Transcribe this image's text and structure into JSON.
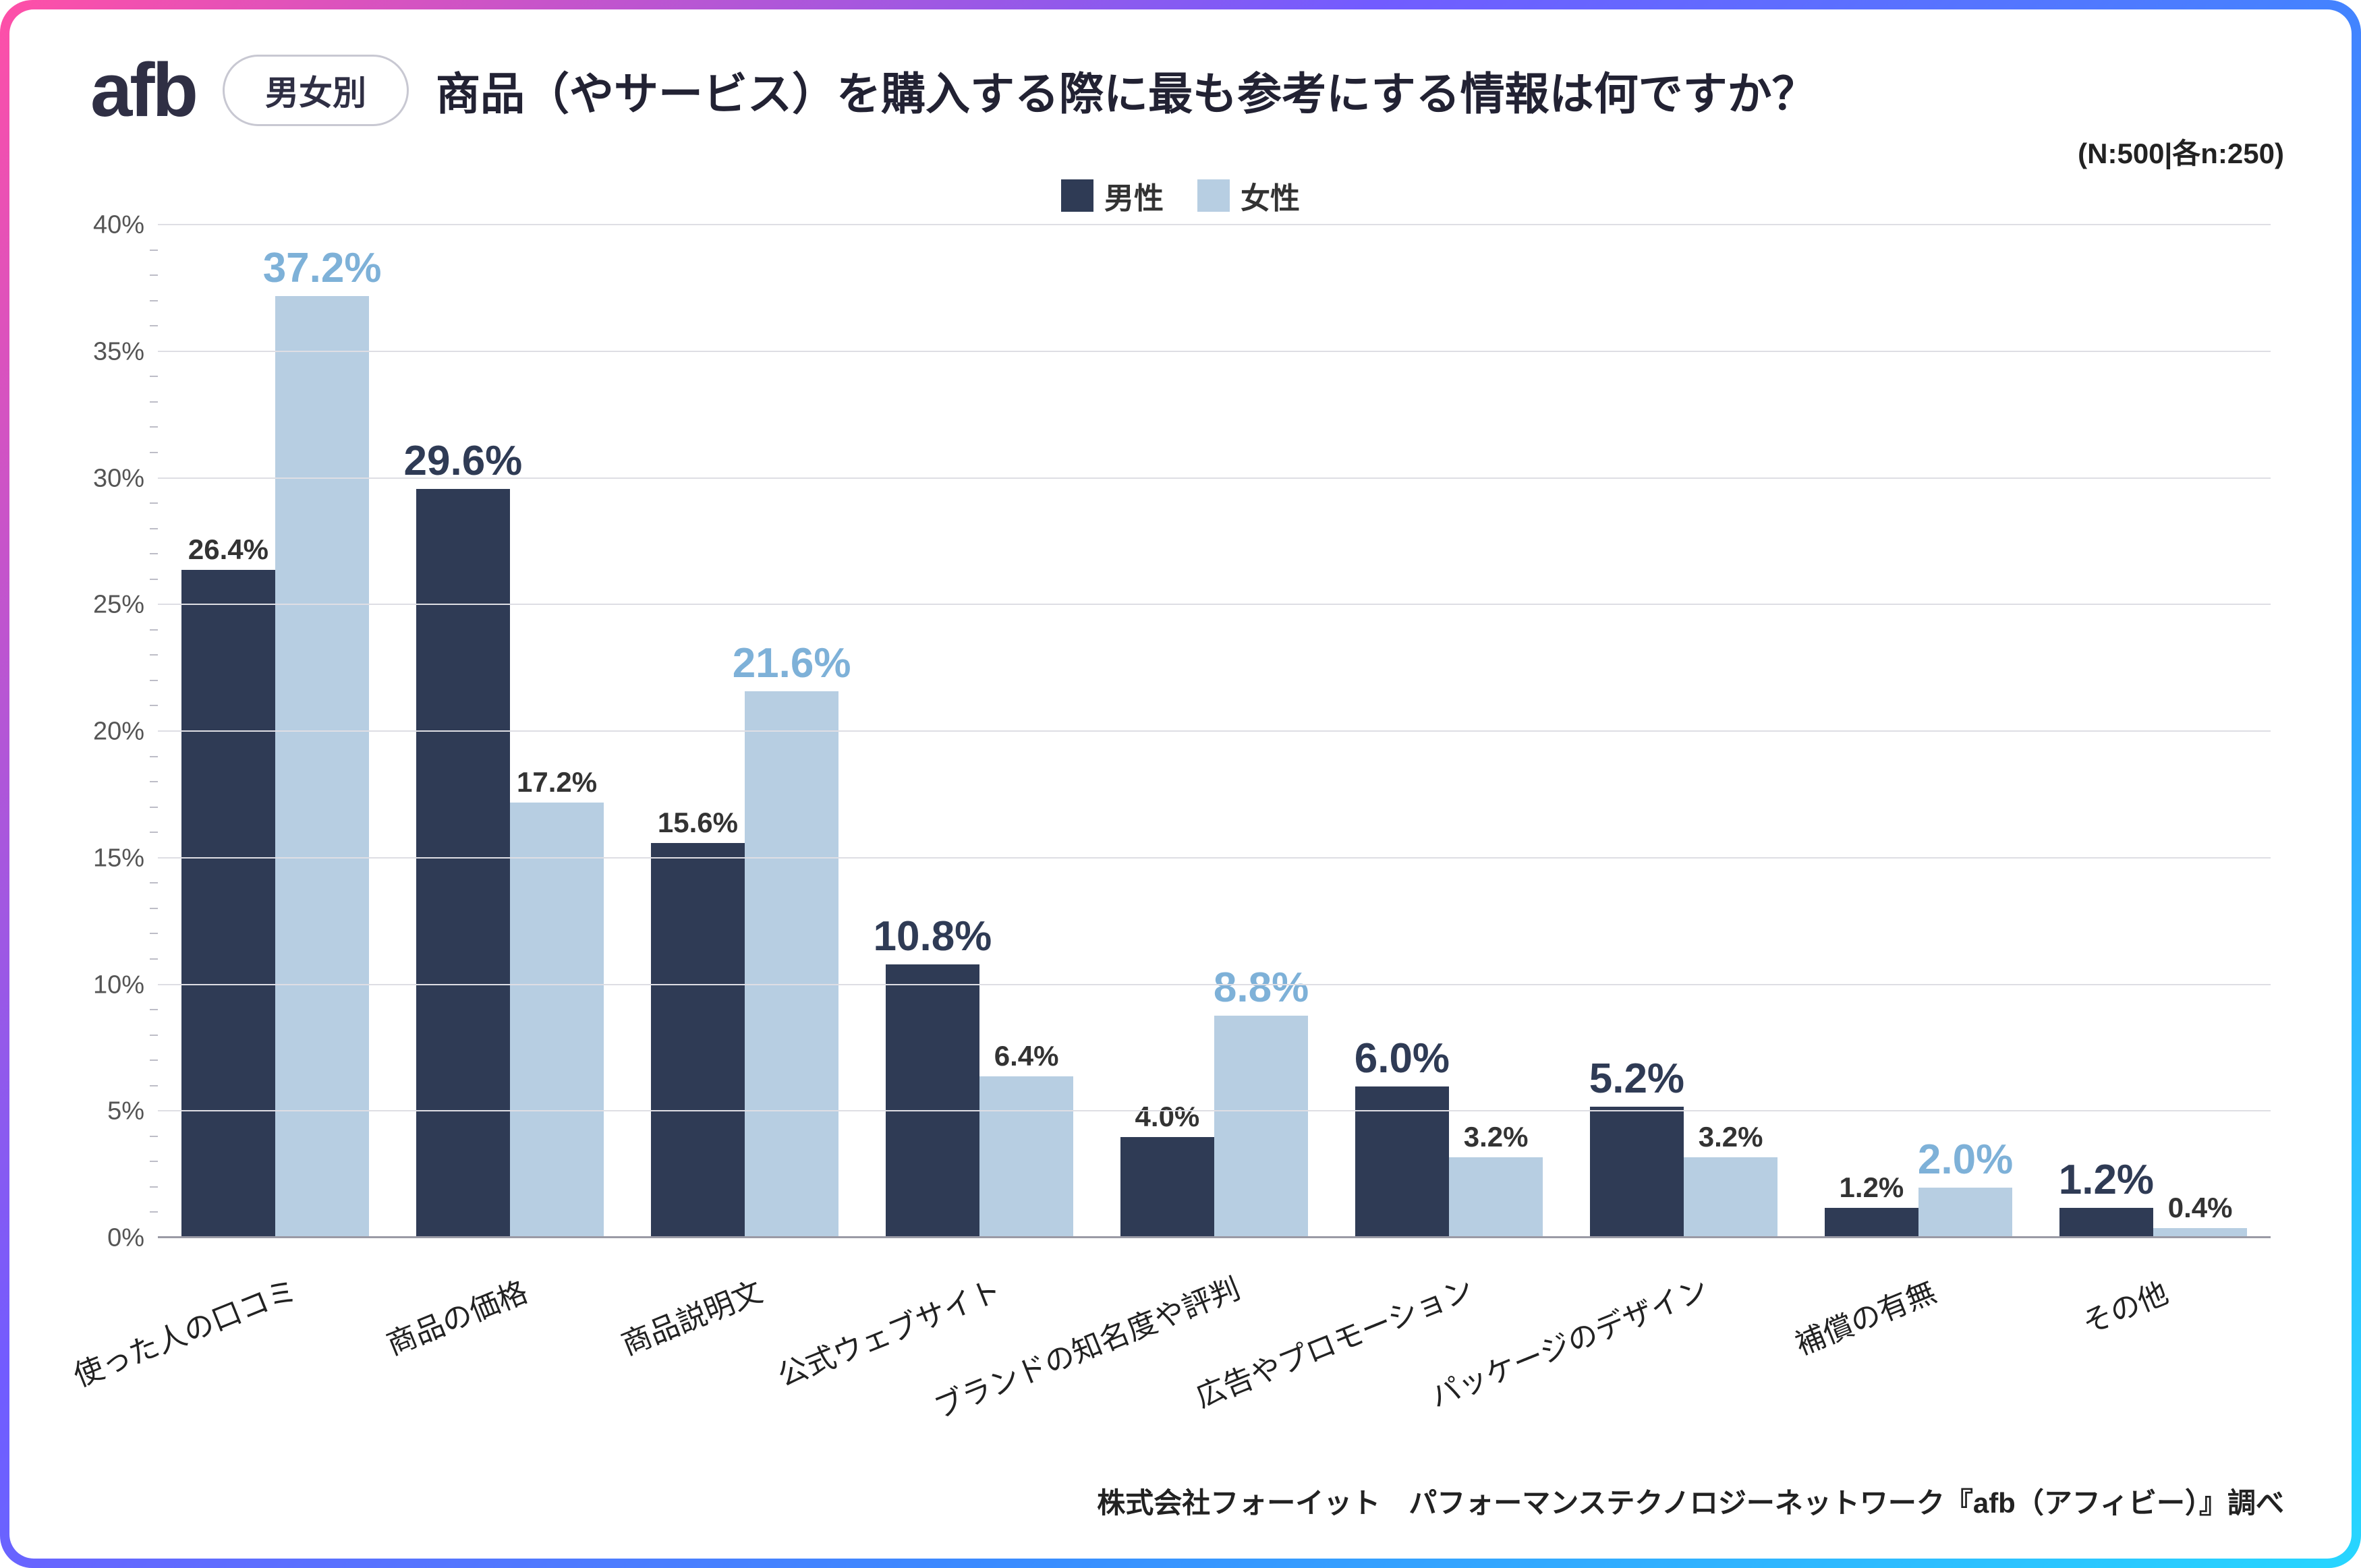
{
  "header": {
    "logo_text": "afb",
    "tag_label": "男女別",
    "title": "商品（やサービス）を購入する際に最も参考にする情報は何ですか？",
    "sample_label": "(N:500|各n:250)"
  },
  "legend": {
    "series": [
      {
        "key": "male",
        "label": "男性",
        "color": "#2f3b55"
      },
      {
        "key": "female",
        "label": "女性",
        "color": "#b7cee2"
      }
    ]
  },
  "chart": {
    "type": "bar",
    "ylim": [
      0,
      40
    ],
    "ytick_step": 5,
    "y_suffix": "%",
    "background_color": "#ffffff",
    "grid_color": "#dedee4",
    "axis_color": "#9a9aa5",
    "bar_gap_within_group": 0,
    "bar_width_pct": 40,
    "label_big_fontsize": 62,
    "label_normal_fontsize": 42,
    "label_big_color_female": "#7eb1d8",
    "label_big_color_male": "#2f3b55",
    "label_normal_color": "#333333",
    "categories": [
      "使った人の口コミ",
      "商品の価格",
      "商品説明文",
      "公式ウェブサイト",
      "ブランドの知名度や評判",
      "広告やプロモーション",
      "パッケージのデザイン",
      "補償の有無",
      "その他"
    ],
    "data": [
      {
        "male": 26.4,
        "female": 37.2,
        "emphasis": "female"
      },
      {
        "male": 29.6,
        "female": 17.2,
        "emphasis": "male"
      },
      {
        "male": 15.6,
        "female": 21.6,
        "emphasis": "female"
      },
      {
        "male": 10.8,
        "female": 6.4,
        "emphasis": "male"
      },
      {
        "male": 4.0,
        "female": 8.8,
        "emphasis": "female"
      },
      {
        "male": 6.0,
        "female": 3.2,
        "emphasis": "male"
      },
      {
        "male": 5.2,
        "female": 3.2,
        "emphasis": "male"
      },
      {
        "male": 1.2,
        "female": 2.0,
        "emphasis": "female"
      },
      {
        "male": 1.2,
        "female": 0.4,
        "emphasis": "male"
      }
    ]
  },
  "attribution": "株式会社フォーイット　パフォーマンステクノロジーネットワーク『afb（アフィビー）』調べ"
}
